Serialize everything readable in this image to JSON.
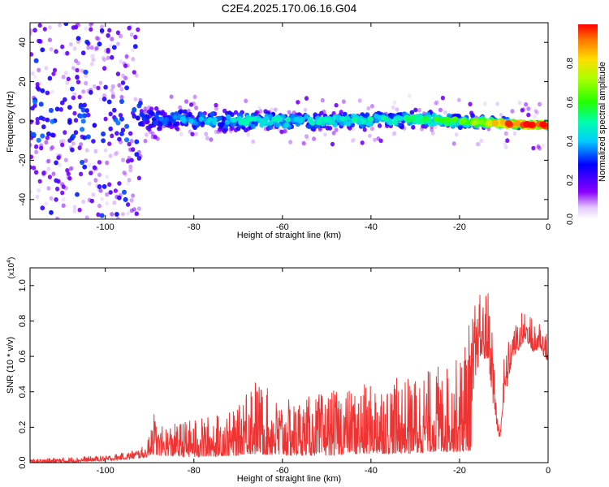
{
  "figure": {
    "title": "C2E4.2025.170.06.16.G04"
  },
  "chart_data": [
    {
      "type": "heatmap",
      "title": "C2E4.2025.170.06.16.G04",
      "xlabel": "Height of straight line (km)",
      "ylabel": "Frequency (Hz)",
      "xlim": [
        -117,
        0
      ],
      "ylim": [
        -50,
        50
      ],
      "xticks": [
        -100,
        -80,
        -60,
        -40,
        -20,
        0
      ],
      "yticks": [
        -40,
        -20,
        0,
        20,
        40
      ],
      "colorbar": {
        "label": "Normalized spectral amplitude",
        "range": [
          0,
          1
        ],
        "ticks": [
          0.0,
          0.2,
          0.4,
          0.6,
          0.8
        ],
        "colormap": "rainbow (violet-blue-cyan-green-yellow-red)"
      },
      "description_points": [
        {
          "x": -110,
          "center_freq": 0,
          "spread_hz": 50,
          "amplitude": 0.1
        },
        {
          "x": -90,
          "center_freq": 1,
          "spread_hz": 8,
          "amplitude": 0.3
        },
        {
          "x": -70,
          "center_freq": 0,
          "spread_hz": 6,
          "amplitude": 0.45
        },
        {
          "x": -50,
          "center_freq": 0,
          "spread_hz": 5,
          "amplitude": 0.45
        },
        {
          "x": -30,
          "center_freq": 1,
          "spread_hz": 5,
          "amplitude": 0.5
        },
        {
          "x": -20,
          "center_freq": 0,
          "spread_hz": 4,
          "amplitude": 0.6
        },
        {
          "x": -5,
          "center_freq": -2,
          "spread_hz": 2,
          "amplitude": 0.95
        }
      ],
      "grid": false
    },
    {
      "type": "line",
      "xlabel": "Height of straight line (km)",
      "ylabel": "SNR (10 * v/v)",
      "y_scale_label": "(x10",
      "y_scale_exp": "4",
      "y_scale_close": ")",
      "xlim": [
        -117,
        0
      ],
      "ylim": [
        0,
        1.1
      ],
      "xticks": [
        -100,
        -80,
        -60,
        -40,
        -20,
        0
      ],
      "yticks": [
        0.0,
        0.2,
        0.4,
        0.6,
        0.8,
        1.0
      ],
      "line_color": "#ee3333",
      "series": [
        {
          "x": [
            -117,
            -110,
            -100,
            -95,
            -90.5,
            -89.5,
            -88,
            -80,
            -70,
            -68,
            -60,
            -50,
            -40,
            -30,
            -25,
            -20,
            -17,
            -15.5,
            -13.5,
            -12.5,
            -11,
            -10,
            -9,
            -8,
            -6,
            -5,
            -3,
            -2,
            -1,
            0
          ],
          "lower": [
            0.0,
            0.0,
            0.01,
            0.02,
            0.03,
            0.05,
            0.04,
            0.03,
            0.04,
            0.05,
            0.04,
            0.04,
            0.05,
            0.05,
            0.06,
            0.06,
            0.07,
            0.4,
            0.3,
            0.1,
            0.05,
            0.2,
            0.3,
            0.5,
            0.55,
            0.6,
            0.5,
            0.55,
            0.5,
            0.5
          ],
          "upper": [
            0.02,
            0.03,
            0.04,
            0.06,
            0.1,
            0.34,
            0.2,
            0.25,
            0.3,
            0.52,
            0.35,
            0.4,
            0.45,
            0.5,
            0.55,
            0.6,
            0.9,
            0.95,
            1.1,
            0.8,
            0.2,
            0.6,
            0.75,
            0.78,
            0.85,
            0.88,
            0.8,
            0.85,
            0.8,
            0.7
          ]
        }
      ],
      "grid": false
    }
  ]
}
